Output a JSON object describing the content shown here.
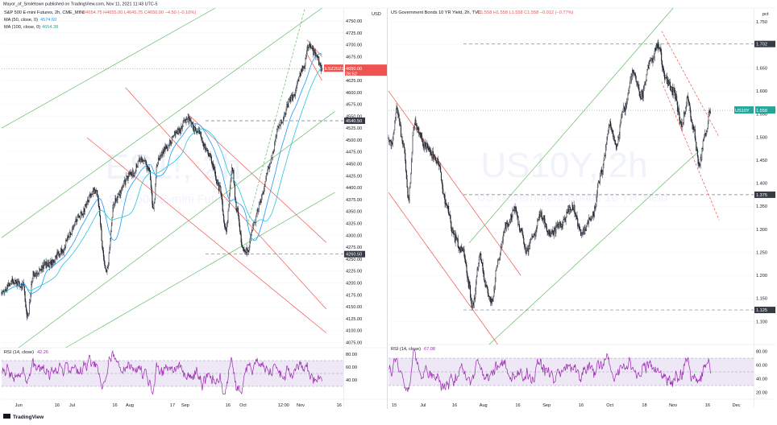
{
  "header": {
    "published": "Mayor_of_Smiletown published on TradingView.com, Nov 11, 2021 11:43 UTC-5"
  },
  "footer": {
    "brand": "TradingView"
  },
  "colors": {
    "candle": "#131722",
    "ma50": "#2196f3",
    "ma100": "#26c6da",
    "green_channel": "#66bb6a",
    "red_channel": "#ef5350",
    "rsi": "#9c27b0",
    "rsi_band": "#ede7f6",
    "price_tag": "#ef5350",
    "yield_tag": "#26a69a",
    "level_tag": "#363a45"
  },
  "chart_data": [
    {
      "type": "candlestick",
      "panel": "left",
      "watermark_symbol": "ES1!, 2h",
      "watermark_name": "S&P 500 E-mini Futures",
      "legend": {
        "title": "S&P 500 E-mini Futures, 2h, CME_MINI",
        "ohlc": "O4654.75  H4655.00  L4645.75  C4650.00  −4.50 (−0.10%)",
        "ma50_label": "MA (50, close, 0)",
        "ma50_value": "4574.60",
        "ma100_label": "MA (100, close, 0)",
        "ma100_value": "4654.38"
      },
      "currency": "USD",
      "ylim": [
        4064,
        4777
      ],
      "yticks": [
        "4750.00",
        "4725.00",
        "4700.00",
        "4675.00",
        "4650.00",
        "4625.00",
        "4600.00",
        "4575.00",
        "4550.00",
        "4525.00",
        "4500.00",
        "4475.00",
        "4450.00",
        "4425.00",
        "4400.00",
        "4375.00",
        "4350.00",
        "4325.00",
        "4300.00",
        "4275.00",
        "4250.00",
        "4225.00",
        "4200.00",
        "4175.00",
        "4150.00",
        "4125.00",
        "4100.00",
        "4075.00"
      ],
      "yticks_values": [
        4750,
        4725,
        4700,
        4675,
        4650,
        4625,
        4600,
        4575,
        4550,
        4525,
        4500,
        4475,
        4450,
        4425,
        4400,
        4375,
        4350,
        4325,
        4300,
        4275,
        4250,
        4225,
        4200,
        4175,
        4150,
        4125,
        4100,
        4075
      ],
      "xticks": [
        "Jun",
        "16",
        "Jul",
        "16",
        "Aug",
        "17",
        "Sep",
        "16",
        "Oct",
        "12:00",
        "Nov",
        "16"
      ],
      "xticks_pos": [
        0.08,
        0.26,
        0.33,
        0.53,
        0.6,
        0.8,
        0.86,
        1.06,
        1.13,
        1.32,
        1.4,
        1.58
      ],
      "x_range": [
        0,
        1.6
      ],
      "price_tag": {
        "label": "ESZ2021",
        "value": "4650.00",
        "countdown": "26:52",
        "y": 4650
      },
      "levels": [
        {
          "label": "4540.50",
          "y": 4540.5
        },
        {
          "label": "4260.50",
          "y": 4260.5
        }
      ],
      "key_points": [
        {
          "t": 0.0,
          "price": 4180
        },
        {
          "t": 0.05,
          "price": 4205
        },
        {
          "t": 0.1,
          "price": 4195
        },
        {
          "t": 0.12,
          "price": 4130
        },
        {
          "t": 0.15,
          "price": 4220
        },
        {
          "t": 0.22,
          "price": 4240
        },
        {
          "t": 0.28,
          "price": 4265
        },
        {
          "t": 0.32,
          "price": 4300
        },
        {
          "t": 0.36,
          "price": 4340
        },
        {
          "t": 0.44,
          "price": 4395
        },
        {
          "t": 0.49,
          "price": 4225
        },
        {
          "t": 0.53,
          "price": 4375
        },
        {
          "t": 0.6,
          "price": 4425
        },
        {
          "t": 0.66,
          "price": 4460
        },
        {
          "t": 0.69,
          "price": 4440
        },
        {
          "t": 0.71,
          "price": 4355
        },
        {
          "t": 0.73,
          "price": 4455
        },
        {
          "t": 0.76,
          "price": 4480
        },
        {
          "t": 0.83,
          "price": 4520
        },
        {
          "t": 0.87,
          "price": 4545
        },
        {
          "t": 0.92,
          "price": 4515
        },
        {
          "t": 0.97,
          "price": 4470
        },
        {
          "t": 1.02,
          "price": 4400
        },
        {
          "t": 1.05,
          "price": 4310
        },
        {
          "t": 1.08,
          "price": 4440
        },
        {
          "t": 1.1,
          "price": 4355
        },
        {
          "t": 1.13,
          "price": 4275
        },
        {
          "t": 1.15,
          "price": 4265
        },
        {
          "t": 1.18,
          "price": 4320
        },
        {
          "t": 1.21,
          "price": 4370
        },
        {
          "t": 1.25,
          "price": 4440
        },
        {
          "t": 1.3,
          "price": 4530
        },
        {
          "t": 1.36,
          "price": 4590
        },
        {
          "t": 1.41,
          "price": 4650
        },
        {
          "t": 1.44,
          "price": 4700
        },
        {
          "t": 1.47,
          "price": 4680
        },
        {
          "t": 1.5,
          "price": 4650
        }
      ],
      "rsi": {
        "label": "RSI (14, close)",
        "value": "42.26",
        "ylim": [
          10,
          90
        ],
        "yticks": [
          "80.00",
          "60.00",
          "40.00"
        ],
        "yticks_values": [
          80,
          60,
          40
        ],
        "band": [
          30,
          70
        ]
      }
    },
    {
      "type": "candlestick",
      "panel": "right",
      "watermark_symbol": "US10Y, 2h",
      "watermark_name": "US Government Bonds 10 YR Yield",
      "legend": {
        "title": "US Government Bonds 10 YR Yield, 2h, TVC",
        "ohlc": "O1.558  H1.558  L1.558  C1.558  −0.012 (−0.77%)"
      },
      "currency": "pct",
      "ylim": [
        1.05,
        1.78
      ],
      "yticks": [
        "1.750",
        "1.700",
        "1.650",
        "1.600",
        "1.550",
        "1.500",
        "1.450",
        "1.400",
        "1.350",
        "1.300",
        "1.250",
        "1.200",
        "1.150",
        "1.100"
      ],
      "yticks_values": [
        1.75,
        1.7,
        1.65,
        1.6,
        1.55,
        1.5,
        1.45,
        1.4,
        1.35,
        1.3,
        1.25,
        1.2,
        1.15,
        1.1
      ],
      "xticks": [
        "15",
        "Jul",
        "16",
        "Aug",
        "16",
        "Sep",
        "16",
        "Oct",
        "18",
        "Nov",
        "16",
        "Dec"
      ],
      "xticks_pos": [
        0.02,
        0.12,
        0.23,
        0.33,
        0.45,
        0.55,
        0.67,
        0.77,
        0.89,
        0.99,
        1.11,
        1.21
      ],
      "x_range": [
        0,
        1.27
      ],
      "price_tag": {
        "label": "US10Y",
        "value": "1.558",
        "y": 1.558
      },
      "levels": [
        {
          "label": "1.702",
          "y": 1.702
        },
        {
          "label": "1.375",
          "y": 1.375
        },
        {
          "label": "1.125",
          "y": 1.125
        }
      ],
      "key_points": [
        {
          "t": 0.0,
          "price": 1.5
        },
        {
          "t": 0.01,
          "price": 1.48
        },
        {
          "t": 0.03,
          "price": 1.56
        },
        {
          "t": 0.05,
          "price": 1.49
        },
        {
          "t": 0.07,
          "price": 1.37
        },
        {
          "t": 0.09,
          "price": 1.53
        },
        {
          "t": 0.13,
          "price": 1.48
        },
        {
          "t": 0.17,
          "price": 1.45
        },
        {
          "t": 0.2,
          "price": 1.36
        },
        {
          "t": 0.23,
          "price": 1.28
        },
        {
          "t": 0.26,
          "price": 1.25
        },
        {
          "t": 0.28,
          "price": 1.18
        },
        {
          "t": 0.29,
          "price": 1.13
        },
        {
          "t": 0.32,
          "price": 1.24
        },
        {
          "t": 0.34,
          "price": 1.17
        },
        {
          "t": 0.36,
          "price": 1.14
        },
        {
          "t": 0.38,
          "price": 1.23
        },
        {
          "t": 0.41,
          "price": 1.31
        },
        {
          "t": 0.44,
          "price": 1.34
        },
        {
          "t": 0.46,
          "price": 1.3
        },
        {
          "t": 0.48,
          "price": 1.25
        },
        {
          "t": 0.5,
          "price": 1.28
        },
        {
          "t": 0.53,
          "price": 1.33
        },
        {
          "t": 0.56,
          "price": 1.29
        },
        {
          "t": 0.6,
          "price": 1.31
        },
        {
          "t": 0.64,
          "price": 1.35
        },
        {
          "t": 0.67,
          "price": 1.29
        },
        {
          "t": 0.71,
          "price": 1.33
        },
        {
          "t": 0.74,
          "price": 1.42
        },
        {
          "t": 0.77,
          "price": 1.53
        },
        {
          "t": 0.79,
          "price": 1.48
        },
        {
          "t": 0.82,
          "price": 1.56
        },
        {
          "t": 0.85,
          "price": 1.64
        },
        {
          "t": 0.88,
          "price": 1.59
        },
        {
          "t": 0.91,
          "price": 1.66
        },
        {
          "t": 0.94,
          "price": 1.7
        },
        {
          "t": 0.96,
          "price": 1.63
        },
        {
          "t": 0.99,
          "price": 1.6
        },
        {
          "t": 1.02,
          "price": 1.53
        },
        {
          "t": 1.04,
          "price": 1.58
        },
        {
          "t": 1.06,
          "price": 1.52
        },
        {
          "t": 1.08,
          "price": 1.44
        },
        {
          "t": 1.1,
          "price": 1.5
        },
        {
          "t": 1.12,
          "price": 1.56
        }
      ],
      "rsi": {
        "label": "RSI (14, close)",
        "value": "67.08",
        "ylim": [
          10,
          90
        ],
        "yticks": [
          "80.00",
          "60.00",
          "40.00",
          "20.00"
        ],
        "yticks_values": [
          80,
          60,
          40,
          20
        ],
        "band": [
          30,
          70
        ]
      }
    }
  ]
}
